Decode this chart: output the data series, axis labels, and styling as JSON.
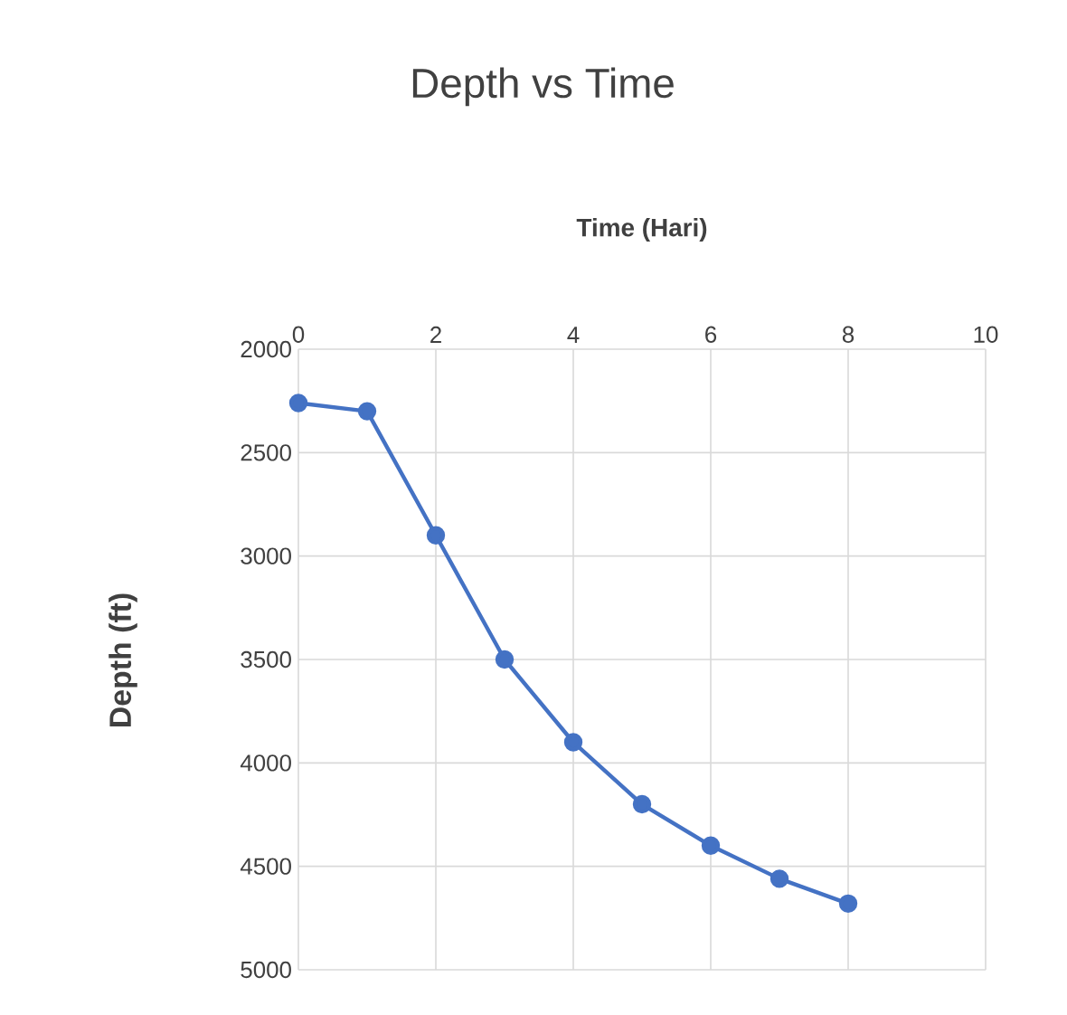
{
  "chart_data": {
    "type": "line",
    "title": "Depth vs Time",
    "xlabel": "Time (Hari)",
    "ylabel": "Depth (ft)",
    "x": [
      0,
      1,
      2,
      3,
      4,
      5,
      6,
      7,
      8
    ],
    "series": [
      {
        "color": "#4472c4",
        "values": [
          2260,
          2300,
          2900,
          3500,
          3900,
          4200,
          4400,
          4560,
          4680
        ]
      }
    ],
    "xlim": [
      0,
      10
    ],
    "xticks": [
      0,
      2,
      4,
      6,
      8,
      10
    ],
    "ylim": [
      5000,
      2000
    ],
    "yticks": [
      2000,
      2500,
      3000,
      3500,
      4000,
      4500,
      5000
    ],
    "grid": true,
    "marker": "circle",
    "line_style": "solid"
  }
}
